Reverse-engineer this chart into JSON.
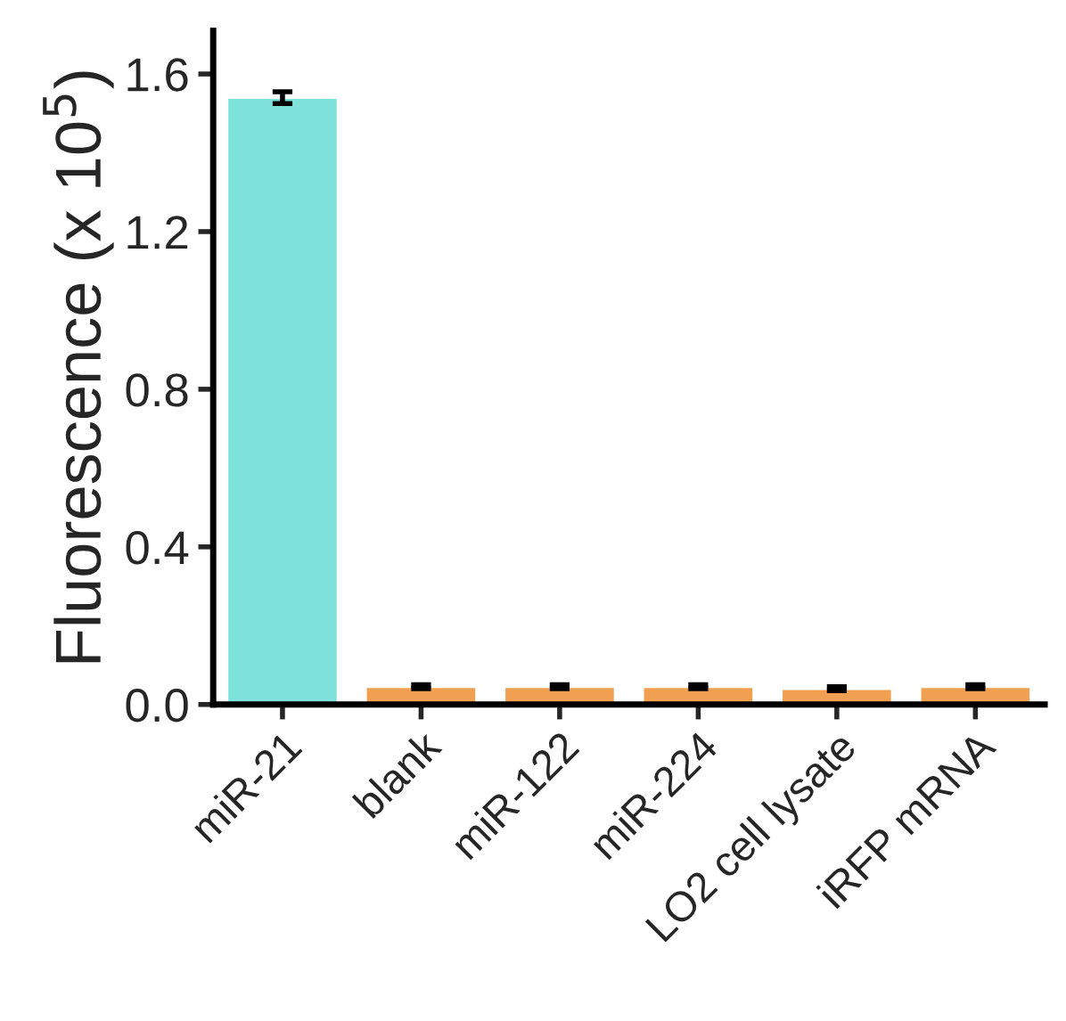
{
  "chart_data": {
    "type": "bar",
    "ylabel": "Fluorescence (x 10$^{5}$)",
    "categories": [
      "miR-21",
      "blank",
      "miR-122",
      "miR-224",
      "LO2 cell lysate",
      "iRFP mRNA"
    ],
    "values": [
      1.54,
      0.045,
      0.045,
      0.045,
      0.04,
      0.045
    ],
    "errors": [
      0.015,
      0.005,
      0.005,
      0.005,
      0.005,
      0.005
    ],
    "colors": [
      "#7fe3dc",
      "#f0a050",
      "#f0a050",
      "#f0a050",
      "#f0a050",
      "#f0a050"
    ],
    "ylim": [
      0,
      1.71
    ],
    "yticks": [
      {
        "value": 0,
        "label": "0.0"
      },
      0.4,
      0.8,
      1.2,
      1.6
    ],
    "grid": false
  }
}
